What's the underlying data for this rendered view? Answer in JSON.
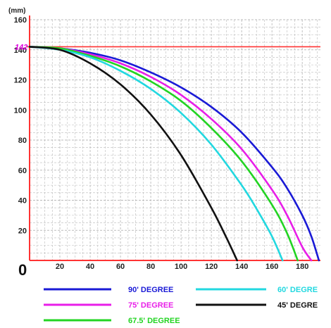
{
  "chart_data": {
    "type": "line",
    "ylabel": "(mm)",
    "origin_label": "0",
    "xlim": [
      0,
      192
    ],
    "ylim": [
      0,
      160
    ],
    "x_ticks": [
      20,
      40,
      60,
      80,
      100,
      120,
      140,
      160,
      180
    ],
    "y_ticks": [
      20,
      40,
      60,
      80,
      100,
      120,
      140,
      160
    ],
    "highlight_y": {
      "label": "142",
      "value": 142,
      "color": "#e000e0"
    },
    "grid": true,
    "grid_color": "#bbbbbb",
    "axis_color": "#ff3333",
    "series": [
      {
        "name": "90' DEGREE",
        "color": "#1a1ad6",
        "x": [
          0,
          20,
          40,
          60,
          80,
          100,
          120,
          140,
          160,
          170,
          180,
          186,
          191
        ],
        "y": [
          142,
          141,
          138,
          133,
          125,
          115,
          102,
          85,
          62,
          48,
          30,
          16,
          0
        ]
      },
      {
        "name": "75' DEGREE",
        "color": "#e81ee8",
        "x": [
          0,
          20,
          40,
          60,
          80,
          100,
          120,
          140,
          160,
          170,
          180,
          186
        ],
        "y": [
          142,
          141,
          137,
          131,
          122,
          110,
          94,
          74,
          47,
          30,
          9,
          0
        ]
      },
      {
        "name": "67.5' DEGREE",
        "color": "#22d422",
        "x": [
          0,
          20,
          40,
          60,
          80,
          100,
          120,
          140,
          160,
          170,
          177
        ],
        "y": [
          142,
          141,
          136,
          129,
          119,
          106,
          88,
          66,
          37,
          18,
          0
        ]
      },
      {
        "name": "60' DEGREE",
        "color": "#22d8e0",
        "x": [
          0,
          20,
          40,
          60,
          80,
          100,
          120,
          140,
          150,
          160,
          167
        ],
        "y": [
          142,
          140,
          135,
          126,
          114,
          98,
          77,
          50,
          34,
          16,
          0
        ]
      },
      {
        "name": "45' DEGREE",
        "color": "#111111",
        "x": [
          0,
          20,
          40,
          60,
          80,
          100,
          120,
          130,
          137
        ],
        "y": [
          142,
          140,
          131,
          117,
          97,
          70,
          35,
          15,
          0
        ]
      }
    ],
    "legend": {
      "placement": "bottom",
      "entries": [
        {
          "label": "90' DEGREE",
          "color": "#1a1ad6",
          "text_color": "#1a1ad6"
        },
        {
          "label": "60' DEGRE",
          "color": "#22d8e0",
          "text_color": "#22d8e0"
        },
        {
          "label": "75' DEGREE",
          "color": "#e81ee8",
          "text_color": "#e81ee8"
        },
        {
          "label": "45' DEGRE",
          "color": "#111111",
          "text_color": "#111111"
        },
        {
          "label": "67.5' DEGREE",
          "color": "#22d422",
          "text_color": "#22d422"
        }
      ]
    }
  }
}
